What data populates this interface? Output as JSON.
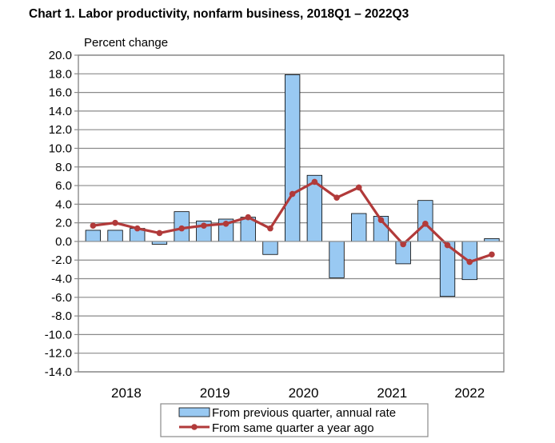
{
  "chart_data": {
    "type": "bar",
    "title": "Chart  1. Labor productivity, nonfarm business, 2018Q1 – 2022Q3",
    "ylabel": "Percent change",
    "ylim": [
      -14,
      20
    ],
    "ytick_step": 2,
    "ytick_labels": [
      "20.0",
      "18.0",
      "16.0",
      "14.0",
      "12.0",
      "10.0",
      "8.0",
      "6.0",
      "4.0",
      "2.0",
      "0.0",
      "-2.0",
      "-4.0",
      "-6.0",
      "-8.0",
      "-10.0",
      "-12.0",
      "-14.0"
    ],
    "grid": true,
    "year_labels": [
      "2018",
      "2019",
      "2020",
      "2021",
      "2022"
    ],
    "quarters": [
      "2018Q1",
      "2018Q2",
      "2018Q3",
      "2018Q4",
      "2019Q1",
      "2019Q2",
      "2019Q3",
      "2019Q4",
      "2020Q1",
      "2020Q2",
      "2020Q3",
      "2020Q4",
      "2021Q1",
      "2021Q2",
      "2021Q3",
      "2021Q4",
      "2022Q1",
      "2022Q2",
      "2022Q3"
    ],
    "series": [
      {
        "name": "From previous quarter, annual rate",
        "type": "bar",
        "color": "#99c9f2",
        "values": [
          1.2,
          1.2,
          1.4,
          -0.3,
          3.2,
          2.2,
          2.4,
          2.6,
          -1.4,
          17.9,
          7.1,
          -3.9,
          3.0,
          2.7,
          -2.4,
          4.4,
          -5.9,
          -4.1,
          0.3
        ]
      },
      {
        "name": "From same quarter a year ago",
        "type": "line",
        "color": "#b13a3a",
        "values": [
          1.7,
          2.0,
          1.4,
          0.9,
          1.4,
          1.7,
          1.9,
          2.6,
          1.4,
          5.1,
          6.4,
          4.7,
          5.8,
          2.3,
          -0.3,
          1.9,
          -0.4,
          -2.2,
          -1.4
        ]
      }
    ],
    "legend_position": "bottom"
  }
}
